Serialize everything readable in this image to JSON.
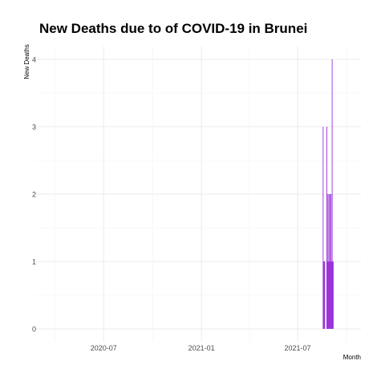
{
  "chart_data": {
    "type": "bar",
    "title": "New Deaths due to of COVID-19 in Brunei",
    "xlabel": "Month",
    "ylabel": "New Deaths",
    "x_ticks": [
      "2020-07",
      "2021-01",
      "2021-07"
    ],
    "x_tick_dates": [
      "2020-07-01",
      "2021-01-01",
      "2021-07-01"
    ],
    "xlim": [
      "2020-04-01",
      "2021-10-01"
    ],
    "ylim": [
      0,
      4
    ],
    "y_ticks": [
      0,
      1,
      2,
      3,
      4
    ],
    "grid": true,
    "bar_color": "#9B30D9",
    "grid_color": "#EBEBEB",
    "x": [
      "2021-08-18",
      "2021-08-19",
      "2021-08-20",
      "2021-08-21",
      "2021-08-22",
      "2021-08-23",
      "2021-08-24",
      "2021-08-25",
      "2021-08-26",
      "2021-08-27",
      "2021-08-28",
      "2021-08-29",
      "2021-08-30",
      "2021-08-31",
      "2021-09-01",
      "2021-09-02",
      "2021-09-03",
      "2021-09-04",
      "2021-09-05",
      "2021-09-06",
      "2021-09-07",
      "2021-09-08"
    ],
    "values": [
      3,
      1,
      1,
      1,
      0,
      0,
      0,
      3,
      1,
      2,
      1,
      2,
      1,
      2,
      1,
      2,
      1,
      4,
      1,
      1,
      0,
      0
    ]
  }
}
